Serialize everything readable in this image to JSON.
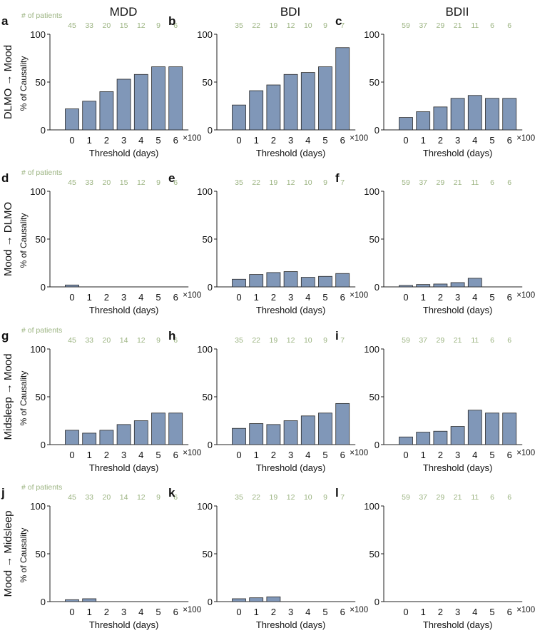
{
  "figure": {
    "column_titles": [
      "MDD",
      "BDI",
      "BDII"
    ],
    "row_labels": [
      "DLMO → Mood",
      "Mood → DLMO",
      "Midsleep → Mood",
      "Mood → Midsleep"
    ],
    "patients_caption": "# of patients",
    "ylabel": "% of Causality",
    "xlabel": "Threshold (days)",
    "x_multiplier": "×100",
    "colors": {
      "bar": "#8097b8",
      "bar_edge": "#2a2a2a",
      "patients_text": "#9cb482",
      "axis": "#222222"
    }
  },
  "chart_data": [
    {
      "panel": "a",
      "type": "bar",
      "title": "MDD",
      "row": "DLMO → Mood",
      "categories": [
        "0",
        "1",
        "2",
        "3",
        "4",
        "5",
        "6"
      ],
      "values": [
        22,
        30,
        40,
        53,
        58,
        66,
        66
      ],
      "patients": [
        "45",
        "33",
        "20",
        "15",
        "12",
        "9",
        "6"
      ],
      "show_patients_caption": true,
      "yticks": [
        "0",
        "50",
        "100"
      ],
      "ylim": [
        0,
        100
      ],
      "xlabel": "Threshold (days)",
      "ylabel": "% of Causality"
    },
    {
      "panel": "b",
      "type": "bar",
      "title": "BDI",
      "row": "DLMO → Mood",
      "categories": [
        "0",
        "1",
        "2",
        "3",
        "4",
        "5",
        "6"
      ],
      "values": [
        26,
        41,
        47,
        58,
        60,
        66,
        86
      ],
      "patients": [
        "35",
        "22",
        "19",
        "12",
        "10",
        "9",
        "7"
      ],
      "show_patients_caption": false,
      "yticks": [
        "0",
        "50",
        "100"
      ],
      "ylim": [
        0,
        100
      ],
      "xlabel": "Threshold (days)",
      "ylabel": ""
    },
    {
      "panel": "c",
      "type": "bar",
      "title": "BDII",
      "row": "DLMO → Mood",
      "categories": [
        "0",
        "1",
        "2",
        "3",
        "4",
        "5",
        "6"
      ],
      "values": [
        13,
        19,
        24,
        33,
        36,
        33,
        33
      ],
      "patients": [
        "59",
        "37",
        "29",
        "21",
        "11",
        "6",
        "6"
      ],
      "show_patients_caption": false,
      "yticks": [
        "0",
        "50",
        "100"
      ],
      "ylim": [
        0,
        100
      ],
      "xlabel": "Threshold (days)",
      "ylabel": ""
    },
    {
      "panel": "d",
      "type": "bar",
      "title": "",
      "row": "Mood → DLMO",
      "categories": [
        "0",
        "1",
        "2",
        "3",
        "4",
        "5",
        "6"
      ],
      "values": [
        2,
        0,
        0,
        0,
        0,
        0,
        0
      ],
      "patients": [
        "45",
        "33",
        "20",
        "15",
        "12",
        "9",
        "6"
      ],
      "show_patients_caption": true,
      "yticks": [
        "0",
        "50",
        "100"
      ],
      "ylim": [
        0,
        100
      ],
      "xlabel": "Threshold (days)",
      "ylabel": "% of Causality"
    },
    {
      "panel": "e",
      "type": "bar",
      "title": "",
      "row": "Mood → DLMO",
      "categories": [
        "0",
        "1",
        "2",
        "3",
        "4",
        "5",
        "6"
      ],
      "values": [
        8,
        13,
        15,
        16,
        10,
        11,
        14
      ],
      "patients": [
        "35",
        "22",
        "19",
        "12",
        "10",
        "9",
        "7"
      ],
      "show_patients_caption": false,
      "yticks": [
        "0",
        "50",
        "100"
      ],
      "ylim": [
        0,
        100
      ],
      "xlabel": "Threshold (days)",
      "ylabel": ""
    },
    {
      "panel": "f",
      "type": "bar",
      "title": "",
      "row": "Mood → DLMO",
      "categories": [
        "0",
        "1",
        "2",
        "3",
        "4",
        "5",
        "6"
      ],
      "values": [
        1.5,
        2.5,
        3,
        4.5,
        9,
        0,
        0
      ],
      "patients": [
        "59",
        "37",
        "29",
        "21",
        "11",
        "6",
        "6"
      ],
      "show_patients_caption": false,
      "yticks": [
        "0",
        "50",
        "100"
      ],
      "ylim": [
        0,
        100
      ],
      "xlabel": "Threshold (days)",
      "ylabel": ""
    },
    {
      "panel": "g",
      "type": "bar",
      "title": "",
      "row": "Midsleep → Mood",
      "categories": [
        "0",
        "1",
        "2",
        "3",
        "4",
        "5",
        "6"
      ],
      "values": [
        15,
        12,
        15,
        21,
        25,
        33,
        33
      ],
      "patients": [
        "45",
        "33",
        "20",
        "14",
        "12",
        "9",
        "6"
      ],
      "show_patients_caption": true,
      "yticks": [
        "0",
        "50",
        "100"
      ],
      "ylim": [
        0,
        100
      ],
      "xlabel": "Threshold (days)",
      "ylabel": "% of Causality"
    },
    {
      "panel": "h",
      "type": "bar",
      "title": "",
      "row": "Midsleep → Mood",
      "categories": [
        "0",
        "1",
        "2",
        "3",
        "4",
        "5",
        "6"
      ],
      "values": [
        17,
        22,
        21,
        25,
        30,
        33,
        43
      ],
      "patients": [
        "35",
        "22",
        "19",
        "12",
        "10",
        "9",
        "7"
      ],
      "show_patients_caption": false,
      "yticks": [
        "0",
        "50",
        "100"
      ],
      "ylim": [
        0,
        100
      ],
      "xlabel": "Threshold (days)",
      "ylabel": ""
    },
    {
      "panel": "i",
      "type": "bar",
      "title": "",
      "row": "Midsleep → Mood",
      "categories": [
        "0",
        "1",
        "2",
        "3",
        "4",
        "5",
        "6"
      ],
      "values": [
        8,
        13,
        14,
        19,
        36,
        33,
        33
      ],
      "patients": [
        "59",
        "37",
        "29",
        "21",
        "11",
        "6",
        "6"
      ],
      "show_patients_caption": false,
      "yticks": [
        "0",
        "50",
        "100"
      ],
      "ylim": [
        0,
        100
      ],
      "xlabel": "Threshold (days)",
      "ylabel": ""
    },
    {
      "panel": "j",
      "type": "bar",
      "title": "",
      "row": "Mood → Midsleep",
      "categories": [
        "0",
        "1",
        "2",
        "3",
        "4",
        "5",
        "6"
      ],
      "values": [
        2,
        3,
        0,
        0,
        0,
        0,
        0
      ],
      "patients": [
        "45",
        "33",
        "20",
        "14",
        "12",
        "9",
        "6"
      ],
      "show_patients_caption": true,
      "yticks": [
        "0",
        "50",
        "100"
      ],
      "ylim": [
        0,
        100
      ],
      "xlabel": "Threshold (days)",
      "ylabel": "% of Causality"
    },
    {
      "panel": "k",
      "type": "bar",
      "title": "",
      "row": "Mood → Midsleep",
      "categories": [
        "0",
        "1",
        "2",
        "3",
        "4",
        "5",
        "6"
      ],
      "values": [
        3,
        4,
        5,
        0,
        0,
        0,
        0
      ],
      "patients": [
        "35",
        "22",
        "19",
        "12",
        "10",
        "9",
        "7"
      ],
      "show_patients_caption": false,
      "yticks": [
        "0",
        "50",
        "100"
      ],
      "ylim": [
        0,
        100
      ],
      "xlabel": "Threshold (days)",
      "ylabel": ""
    },
    {
      "panel": "l",
      "type": "bar",
      "title": "",
      "row": "Mood → Midsleep",
      "categories": [
        "0",
        "1",
        "2",
        "3",
        "4",
        "5",
        "6"
      ],
      "values": [
        0,
        0,
        0,
        0,
        0,
        0,
        0
      ],
      "patients": [
        "59",
        "37",
        "29",
        "21",
        "11",
        "6",
        "6"
      ],
      "show_patients_caption": false,
      "yticks": [
        "0",
        "50",
        "100"
      ],
      "ylim": [
        0,
        100
      ],
      "xlabel": "Threshold (days)",
      "ylabel": ""
    }
  ]
}
